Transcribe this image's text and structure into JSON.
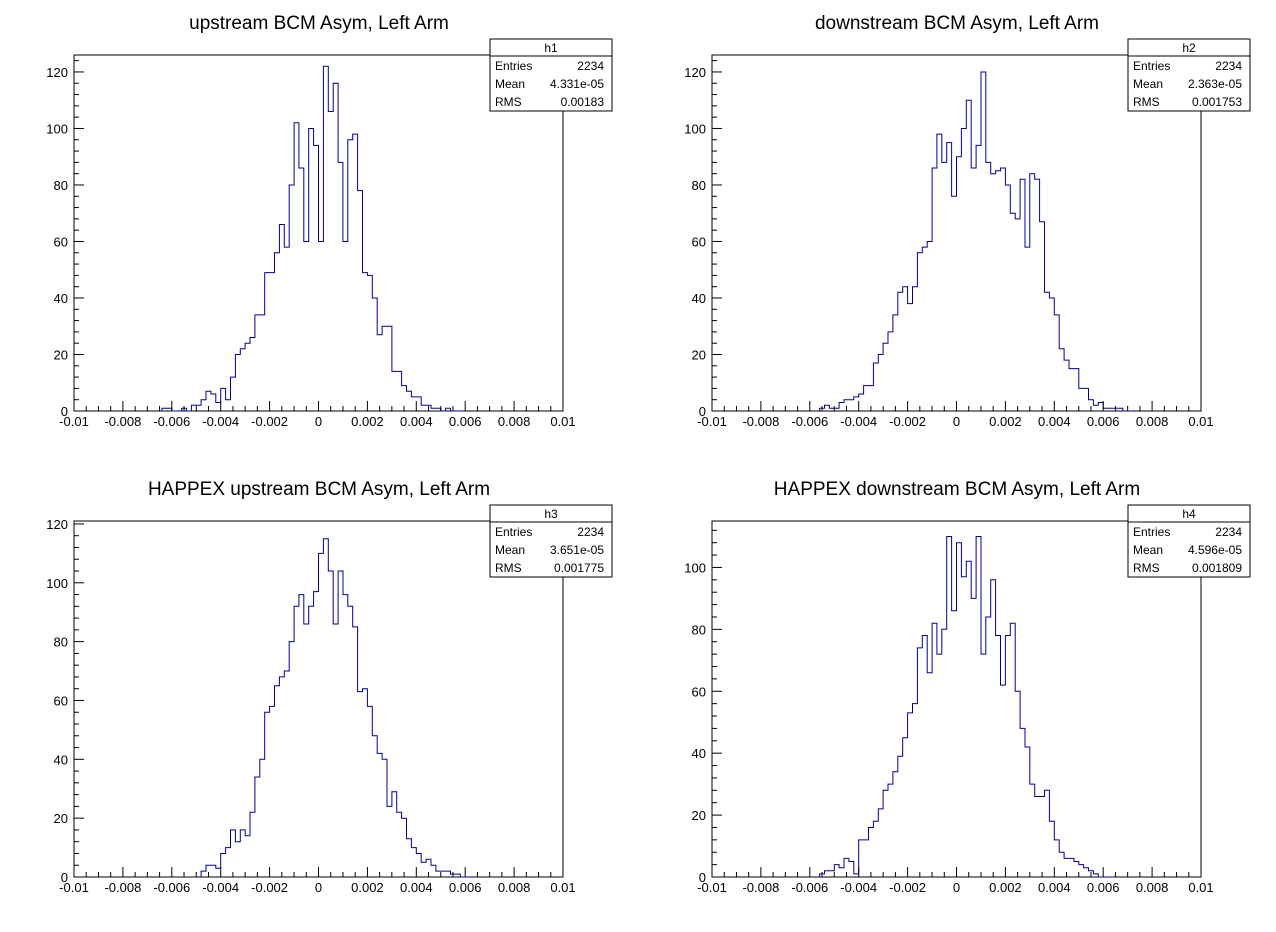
{
  "chart_data": [
    {
      "type": "bar",
      "title": "upstream BCM Asym, Left Arm",
      "xlim": [
        -0.01,
        0.01
      ],
      "ylim": [
        0,
        126
      ],
      "x_ticks": [
        "-0.01",
        "-0.008",
        "-0.006",
        "-0.004",
        "-0.002",
        "0",
        "0.002",
        "0.004",
        "0.006",
        "0.008",
        "0.01"
      ],
      "y_ticks": [
        "0",
        "20",
        "40",
        "60",
        "80",
        "100",
        "120"
      ],
      "y_tick_values": [
        0,
        20,
        40,
        60,
        80,
        100,
        120
      ],
      "stats": {
        "name": "h1",
        "rows": [
          [
            "Entries",
            "2234"
          ],
          [
            "Mean",
            "4.331e-05"
          ],
          [
            "RMS",
            "0.00183"
          ]
        ]
      },
      "bin_start": -0.0064,
      "bin_width": 0.0002,
      "values": [
        1,
        1,
        0,
        0,
        1,
        0,
        2,
        2,
        4,
        7,
        6,
        3,
        8,
        4,
        12,
        20,
        22,
        24,
        26,
        34,
        34,
        49,
        49,
        56,
        66,
        58,
        80,
        102,
        86,
        60,
        100,
        94,
        60,
        122,
        106,
        116,
        88,
        60,
        96,
        98,
        78,
        49,
        48,
        40,
        27,
        30,
        30,
        14,
        14,
        9,
        7,
        5,
        5,
        2,
        2,
        1,
        1,
        0,
        1,
        0,
        0,
        0
      ]
    },
    {
      "type": "bar",
      "title": "downstream BCM Asym, Left Arm",
      "xlim": [
        -0.01,
        0.01
      ],
      "ylim": [
        0,
        126
      ],
      "x_ticks": [
        "-0.01",
        "-0.008",
        "-0.006",
        "-0.004",
        "-0.002",
        "0",
        "0.002",
        "0.004",
        "0.006",
        "0.008",
        "0.01"
      ],
      "y_ticks": [
        "0",
        "20",
        "40",
        "60",
        "80",
        "100",
        "120"
      ],
      "y_tick_values": [
        0,
        20,
        40,
        60,
        80,
        100,
        120
      ],
      "stats": {
        "name": "h2",
        "rows": [
          [
            "Entries",
            "2234"
          ],
          [
            "Mean",
            "2.363e-05"
          ],
          [
            "RMS",
            "0.001753"
          ]
        ]
      },
      "bin_start": -0.0056,
      "bin_width": 0.0002,
      "values": [
        1,
        2,
        1,
        1,
        3,
        4,
        4,
        5,
        6,
        9,
        9,
        17,
        20,
        24,
        28,
        34,
        42,
        44,
        38,
        44,
        56,
        58,
        60,
        86,
        98,
        88,
        95,
        76,
        90,
        100,
        110,
        86,
        94,
        120,
        88,
        84,
        85,
        86,
        80,
        70,
        68,
        82,
        58,
        84,
        82,
        67,
        42,
        40,
        34,
        22,
        18,
        15,
        15,
        8,
        8,
        4,
        2,
        3,
        1,
        1,
        1,
        1,
        0,
        0
      ]
    },
    {
      "type": "bar",
      "title": "HAPPEX upstream BCM Asym, Left Arm",
      "xlim": [
        -0.01,
        0.01
      ],
      "ylim": [
        0,
        121
      ],
      "x_ticks": [
        "-0.01",
        "-0.008",
        "-0.006",
        "-0.004",
        "-0.002",
        "0",
        "0.002",
        "0.004",
        "0.006",
        "0.008",
        "0.01"
      ],
      "y_ticks": [
        "0",
        "20",
        "40",
        "60",
        "80",
        "100",
        "120"
      ],
      "y_tick_values": [
        0,
        20,
        40,
        60,
        80,
        100,
        120
      ],
      "stats": {
        "name": "h3",
        "rows": [
          [
            "Entries",
            "2234"
          ],
          [
            "Mean",
            "3.651e-05"
          ],
          [
            "RMS",
            "0.001775"
          ]
        ]
      },
      "bin_start": -0.0048,
      "bin_width": 0.0002,
      "values": [
        2,
        4,
        4,
        3,
        8,
        10,
        16,
        12,
        16,
        14,
        22,
        34,
        40,
        56,
        58,
        65,
        68,
        70,
        80,
        92,
        96,
        86,
        92,
        97,
        110,
        115,
        104,
        86,
        104,
        96,
        92,
        85,
        63,
        64,
        58,
        48,
        42,
        40,
        24,
        29,
        22,
        20,
        13,
        10,
        8,
        5,
        6,
        4,
        2,
        2,
        2,
        1,
        1,
        0,
        0
      ]
    },
    {
      "type": "bar",
      "title": "HAPPEX downstream BCM Asym, Left Arm",
      "xlim": [
        -0.01,
        0.01
      ],
      "ylim": [
        0,
        115
      ],
      "x_ticks": [
        "-0.01",
        "-0.008",
        "-0.006",
        "-0.004",
        "-0.002",
        "0",
        "0.002",
        "0.004",
        "0.006",
        "0.008",
        "0.01"
      ],
      "y_ticks": [
        "0",
        "20",
        "40",
        "60",
        "80",
        "100"
      ],
      "y_tick_values": [
        0,
        20,
        40,
        60,
        80,
        100
      ],
      "stats": {
        "name": "h4",
        "rows": [
          [
            "Entries",
            "2234"
          ],
          [
            "Mean",
            "4.596e-05"
          ],
          [
            "RMS",
            "0.001809"
          ]
        ]
      },
      "bin_start": -0.0056,
      "bin_width": 0.0002,
      "values": [
        1,
        2,
        2,
        4,
        3,
        6,
        5,
        1,
        12,
        12,
        16,
        18,
        22,
        28,
        30,
        34,
        39,
        45,
        53,
        56,
        74,
        78,
        66,
        82,
        72,
        80,
        110,
        86,
        108,
        97,
        102,
        90,
        110,
        72,
        84,
        96,
        78,
        62,
        78,
        82,
        60,
        48,
        42,
        30,
        26,
        26,
        28,
        18,
        12,
        8,
        6,
        6,
        5,
        4,
        3,
        2,
        1,
        0,
        0,
        0
      ]
    }
  ]
}
